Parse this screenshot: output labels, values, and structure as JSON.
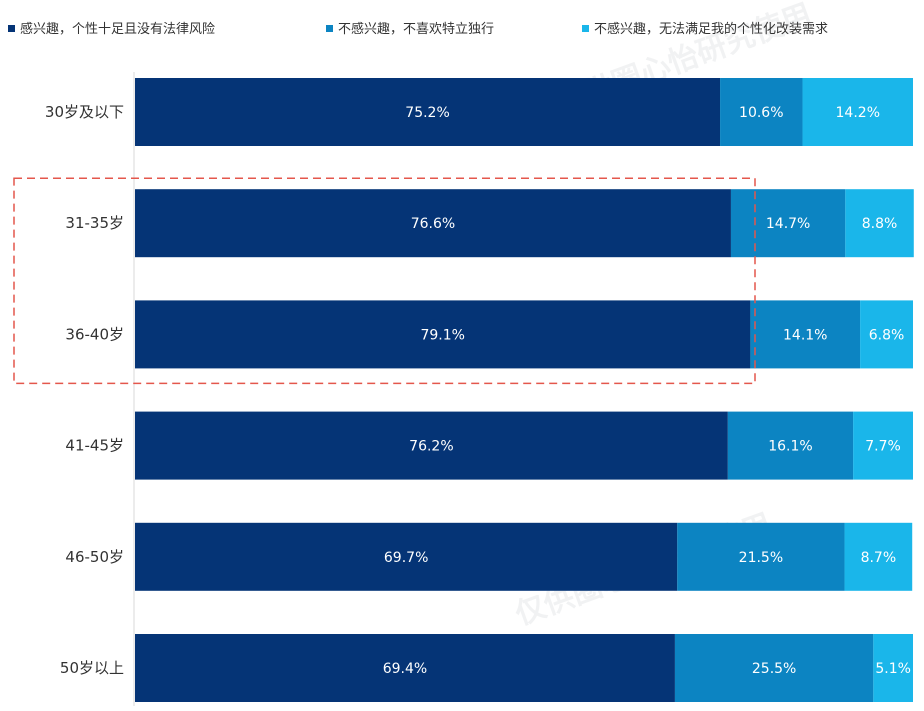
{
  "chart_data": {
    "type": "bar",
    "orientation": "horizontal",
    "stacked": true,
    "percent_stacked": true,
    "categories": [
      "30岁及以下",
      "31-35岁",
      "36-40岁",
      "41-45岁",
      "46-50岁",
      "50岁以上"
    ],
    "series": [
      {
        "name": "感兴趣，个性十足且没有法律风险",
        "color": "#053476",
        "values": [
          75.2,
          76.6,
          79.1,
          76.2,
          69.7,
          69.4
        ],
        "labels": [
          "75.2%",
          "76.6%",
          "79.1%",
          "76.2%",
          "69.7%",
          "69.4%"
        ]
      },
      {
        "name": "不感兴趣，不喜欢特立独行",
        "color": "#0c84c2",
        "values": [
          10.6,
          14.7,
          14.1,
          16.1,
          21.5,
          25.5
        ],
        "labels": [
          "10.6%",
          "14.7%",
          "14.1%",
          "16.1%",
          "21.5%",
          "25.5%"
        ]
      },
      {
        "name": "不感兴趣，无法满足我的个性化改装需求",
        "color": "#1ab6ea",
        "values": [
          14.2,
          8.8,
          6.8,
          7.7,
          8.7,
          5.1
        ],
        "labels": [
          "14.2%",
          "8.8%",
          "6.8%",
          "7.7%",
          "8.7%",
          "5.1%"
        ]
      }
    ],
    "xlim": [
      0,
      100
    ],
    "legend": "top",
    "grid": false,
    "highlight": {
      "categories": [
        "31-35岁",
        "36-40岁"
      ],
      "style": "dashed",
      "color": "#e4574c"
    }
  },
  "watermark": {
    "text": "仅供圈心怡研究使用"
  }
}
